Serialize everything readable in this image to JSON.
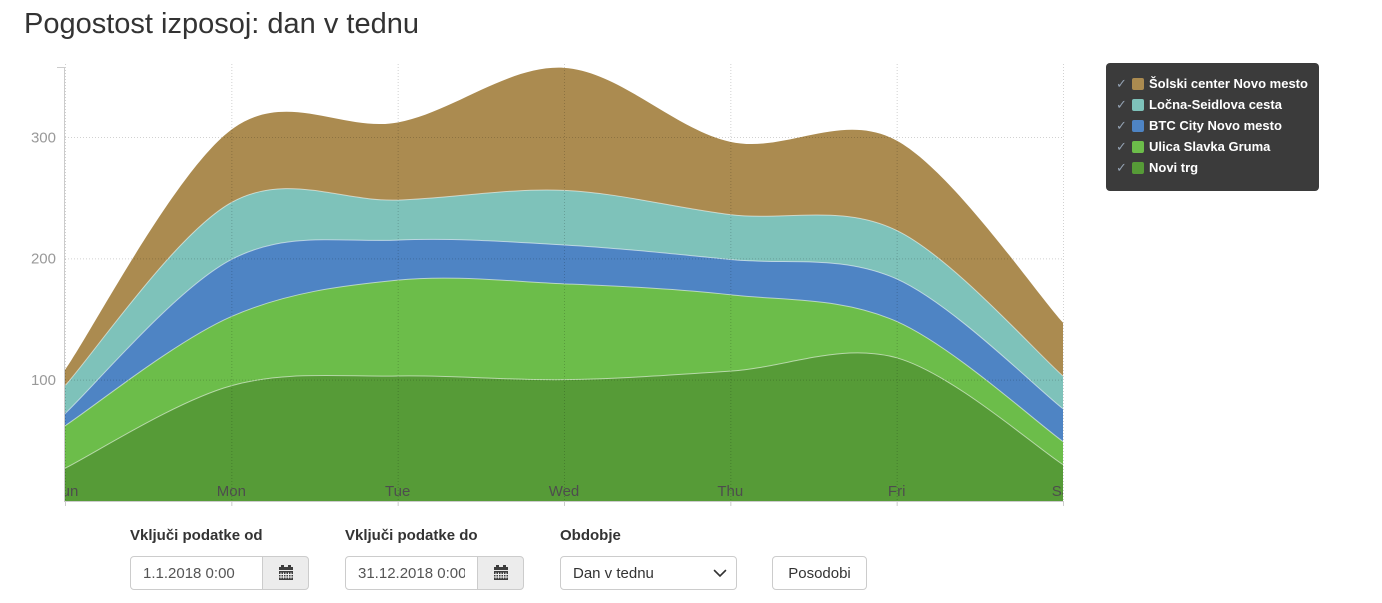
{
  "title": "Pogostost izposoj: dan v tednu",
  "chart_data": {
    "type": "area",
    "stacked": true,
    "x_categories": [
      "Sun",
      "Mon",
      "Tue",
      "Wed",
      "Thu",
      "Fri",
      "Sat"
    ],
    "yticks": [
      100,
      200,
      300
    ],
    "ylim": [
      0,
      360
    ],
    "grid": "dotted horizontal and vertical gridlines",
    "legend_position": "top-right",
    "series_bottom_to_top": [
      {
        "name": "Novi trg",
        "color": "#569b37",
        "values": [
          27,
          95,
          103,
          100,
          107,
          118,
          30
        ]
      },
      {
        "name": "Ulica Slavka Gruma",
        "color": "#6cbd4a",
        "values": [
          35,
          57,
          79,
          79,
          63,
          30,
          19
        ]
      },
      {
        "name": "BTC City Novo mesto",
        "color": "#4e84c4",
        "values": [
          10,
          47,
          33,
          32,
          29,
          35,
          27
        ]
      },
      {
        "name": "Ločna-Seidlova cesta",
        "color": "#7ec2ba",
        "values": [
          23,
          47,
          33,
          45,
          37,
          40,
          27
        ]
      },
      {
        "name": "Šolski center Novo mesto",
        "color": "#ab8b50",
        "values": [
          13,
          60,
          64,
          101,
          60,
          74,
          44
        ]
      }
    ],
    "totals_by_day": [
      108,
      306,
      312,
      357,
      296,
      297,
      147
    ]
  },
  "legend": {
    "background": "#3b3b3b",
    "check_color": "#93a1b1",
    "items": [
      {
        "label": "Šolski center Novo mesto",
        "color": "#ab8b50",
        "checked": true
      },
      {
        "label": "Ločna-Seidlova cesta",
        "color": "#7ec2ba",
        "checked": true
      },
      {
        "label": "BTC City Novo mesto",
        "color": "#4e84c4",
        "checked": true
      },
      {
        "label": "Ulica Slavka Gruma",
        "color": "#6cbd4a",
        "checked": true
      },
      {
        "label": "Novi trg",
        "color": "#569b37",
        "checked": true
      }
    ]
  },
  "form": {
    "from": {
      "label": "Vključi podatke od",
      "value": "1.1.2018 0:00"
    },
    "to": {
      "label": "Vključi podatke do",
      "value": "31.12.2018 0:00"
    },
    "period": {
      "label": "Obdobje",
      "selected": "Dan v tednu"
    },
    "update_button": "Posodobi"
  },
  "axis_colors": {
    "tick_label": "#999999",
    "day_label": "#4d4d4d",
    "line": "#cccccc"
  }
}
